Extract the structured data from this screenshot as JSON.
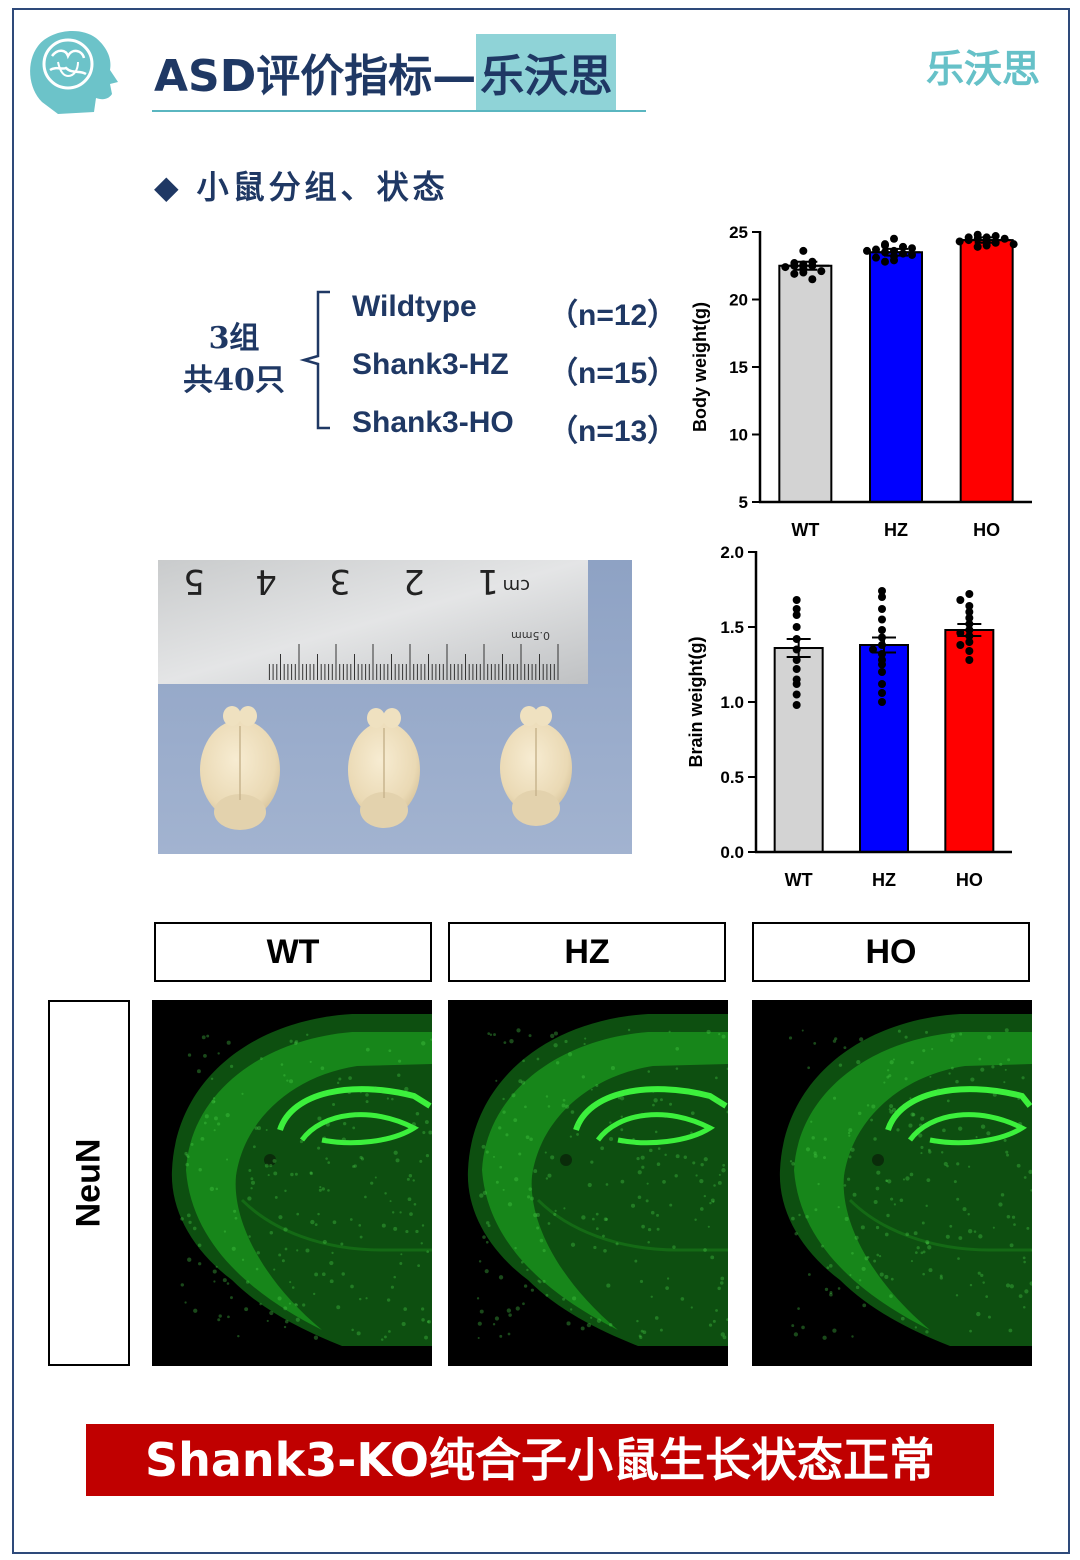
{
  "header": {
    "title_main": "ASD评价指标—",
    "title_highlight": "乐沃思",
    "brand": "乐沃思"
  },
  "section": {
    "diamond": "◆",
    "title": "小鼠分组、状态"
  },
  "groups": {
    "total_line1": "3组",
    "total_line2": "共40只",
    "items": [
      {
        "name": "Wildtype",
        "n": "（n=12）"
      },
      {
        "name": "Shank3-HZ",
        "n": "（n=15）"
      },
      {
        "name": "Shank3-HO",
        "n": "（n=13）"
      }
    ]
  },
  "ruler": {
    "unit": "cm",
    "numbers": [
      "1",
      "2",
      "3",
      "4",
      "5"
    ],
    "mm_label": "0.5mm"
  },
  "histology": {
    "columns": [
      "WT",
      "HZ",
      "HO"
    ],
    "row_label": "NeuN"
  },
  "conclusion": "Shank3-KO纯合子小鼠生长状态正常",
  "colors": {
    "navy": "#1f3864",
    "teal": "#66c1c8",
    "wt": "#d3d3d3",
    "hz": "#0000ff",
    "ho": "#ff0000",
    "banner": "#c00000"
  },
  "chart_data": [
    {
      "type": "bar",
      "ylabel": "Body weight(g)",
      "categories": [
        "WT",
        "HZ",
        "HO"
      ],
      "values": [
        22.5,
        23.5,
        24.4
      ],
      "sem": [
        0.3,
        0.25,
        0.2
      ],
      "ylim": [
        5,
        25
      ],
      "yticks": [
        "5",
        "10",
        "15",
        "20",
        "25"
      ],
      "points": [
        [
          22.0,
          22.3,
          22.5,
          22.5,
          22.6,
          22.4,
          21.9,
          22.7,
          23.6,
          22.8,
          21.5,
          22.1
        ],
        [
          23.2,
          23.6,
          24.0,
          23.5,
          24.5,
          23.9,
          22.9,
          23.7,
          23.4,
          23.1,
          24.1,
          23.8,
          23.3,
          22.8,
          23.6
        ],
        [
          24.3,
          24.6,
          24.5,
          24.0,
          24.8,
          24.2,
          24.4,
          23.9,
          24.7,
          24.5,
          24.3,
          24.6,
          24.1
        ]
      ]
    },
    {
      "type": "bar",
      "ylabel": "Brain weight(g)",
      "categories": [
        "WT",
        "HZ",
        "HO"
      ],
      "values": [
        1.36,
        1.38,
        1.48
      ],
      "sem": [
        0.06,
        0.05,
        0.04
      ],
      "ylim": [
        0.0,
        2.0
      ],
      "yticks": [
        "0.0",
        "0.5",
        "1.0",
        "1.5",
        "2.0"
      ],
      "points": [
        [
          0.98,
          1.05,
          1.15,
          1.22,
          1.28,
          1.35,
          1.42,
          1.5,
          1.58,
          1.62,
          1.68,
          1.12
        ],
        [
          1.0,
          1.06,
          1.12,
          1.2,
          1.28,
          1.32,
          1.38,
          1.43,
          1.48,
          1.55,
          1.62,
          1.7,
          1.74,
          1.35,
          1.25
        ],
        [
          1.28,
          1.34,
          1.4,
          1.44,
          1.48,
          1.52,
          1.56,
          1.6,
          1.64,
          1.68,
          1.72,
          1.46,
          1.38
        ]
      ]
    }
  ]
}
